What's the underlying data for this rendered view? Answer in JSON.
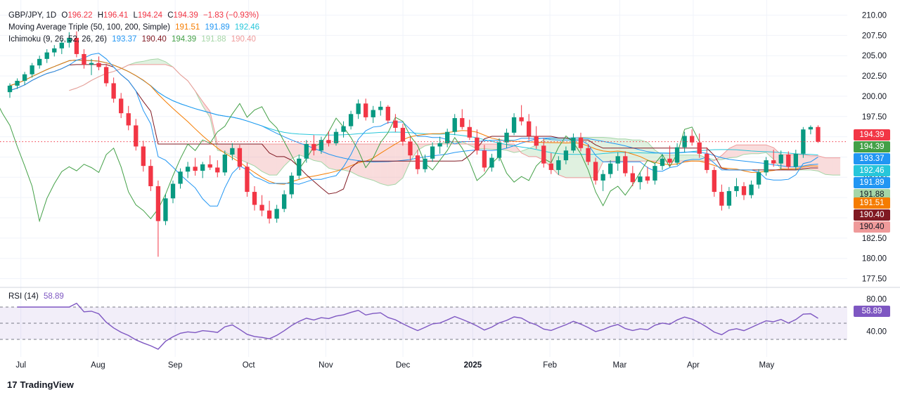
{
  "legend": {
    "symbol": "GBP/JPY, 1D",
    "open_label": "O",
    "open": "196.22",
    "high_label": "H",
    "high": "196.41",
    "low_label": "L",
    "low": "194.24",
    "close_label": "C",
    "close": "194.39",
    "change": "−1.83 (−0.93%)",
    "ma_title": "Moving Average Triple (50, 100, 200, Simple)",
    "ma_values": [
      "191.51",
      "191.89",
      "192.46"
    ],
    "ichimoku_title": "Ichimoku (9, 26, 52, 26, 26)",
    "ichimoku_values": [
      "193.37",
      "190.40",
      "194.39",
      "191.88",
      "190.40"
    ],
    "rsi_title": "RSI (14)",
    "rsi_value": "58.89"
  },
  "price_badges": [
    {
      "text": "194.39",
      "color": "#f23645"
    },
    {
      "text": "194.39",
      "color": "#43a047"
    },
    {
      "text": "193.37",
      "color": "#2196f3"
    },
    {
      "text": "192.46",
      "color": "#26c6da"
    },
    {
      "text": "191.89",
      "color": "#2196f3"
    },
    {
      "text": "191.88",
      "color": "#a5d6a7"
    },
    {
      "text": "191.51",
      "color": "#f57c00"
    },
    {
      "text": "190.40",
      "color": "#801922"
    },
    {
      "text": "190.40",
      "color": "#ef9a9a"
    }
  ],
  "rsi_badge": {
    "text": "58.89",
    "color": "#7e57c2"
  },
  "brand": "TradingView",
  "colors": {
    "up": "#089981",
    "down": "#f23645",
    "ma50": "#f57c00",
    "ma100": "#2196f3",
    "ma200": "#26c6da",
    "tenkan": "#2196f3",
    "kijun": "#801922",
    "lagging": "#43a047",
    "cloud_bull": "#a5d6a7",
    "cloud_bear": "#ef9a9a",
    "rsi": "#7e57c2"
  },
  "chart_data": {
    "type": "candlestick",
    "price_axis": {
      "ticks": [
        "210.00",
        "207.50",
        "205.00",
        "202.50",
        "200.00",
        "197.50",
        "195.00",
        "192.50",
        "190.00",
        "187.50",
        "185.00",
        "182.50",
        "180.00",
        "177.50"
      ],
      "range": [
        177.2,
        211.0
      ]
    },
    "rsi_axis": {
      "ticks": [
        "80.00",
        "40.00"
      ],
      "range": [
        10,
        90
      ],
      "bands": [
        30,
        50,
        70
      ]
    },
    "x_labels": [
      "Jul",
      "Aug",
      "Sep",
      "Oct",
      "Nov",
      "Dec",
      "2025",
      "Feb",
      "Mar",
      "Apr",
      "May"
    ],
    "last_close": 194.39,
    "ohlc": [
      [
        200.5,
        201.6,
        199.8,
        201.3
      ],
      [
        201.3,
        202.2,
        200.9,
        201.9
      ],
      [
        201.9,
        203.0,
        201.4,
        202.7
      ],
      [
        202.7,
        204.1,
        202.3,
        203.8
      ],
      [
        203.8,
        205.0,
        203.4,
        204.6
      ],
      [
        204.6,
        205.8,
        204.1,
        205.4
      ],
      [
        205.4,
        206.3,
        204.9,
        205.9
      ],
      [
        205.9,
        207.0,
        205.2,
        206.6
      ],
      [
        206.6,
        207.9,
        206.0,
        207.2
      ],
      [
        207.2,
        208.0,
        204.8,
        205.2
      ],
      [
        205.2,
        205.8,
        203.4,
        203.9
      ],
      [
        203.9,
        204.6,
        202.6,
        204.1
      ],
      [
        204.1,
        204.9,
        203.2,
        203.6
      ],
      [
        203.6,
        204.0,
        201.2,
        201.6
      ],
      [
        201.6,
        202.3,
        199.2,
        199.7
      ],
      [
        199.7,
        200.4,
        197.3,
        197.9
      ],
      [
        197.9,
        198.8,
        195.8,
        196.4
      ],
      [
        196.4,
        197.2,
        193.3,
        193.8
      ],
      [
        193.8,
        194.5,
        190.7,
        191.4
      ],
      [
        191.4,
        192.2,
        188.3,
        188.9
      ],
      [
        188.9,
        189.6,
        180.2,
        184.6
      ],
      [
        184.6,
        187.9,
        184.1,
        187.4
      ],
      [
        187.4,
        189.6,
        186.8,
        189.2
      ],
      [
        189.2,
        191.1,
        188.6,
        190.7
      ],
      [
        190.7,
        191.9,
        189.9,
        191.3
      ],
      [
        191.3,
        192.4,
        190.2,
        190.8
      ],
      [
        190.8,
        191.9,
        189.9,
        191.6
      ],
      [
        191.6,
        192.7,
        190.9,
        191.2
      ],
      [
        191.2,
        192.1,
        190.0,
        190.6
      ],
      [
        190.6,
        193.3,
        190.2,
        192.8
      ],
      [
        192.8,
        194.2,
        192.1,
        193.6
      ],
      [
        193.6,
        194.0,
        190.9,
        191.3
      ],
      [
        191.3,
        191.8,
        187.6,
        188.2
      ],
      [
        188.2,
        188.9,
        185.9,
        186.6
      ],
      [
        186.6,
        187.8,
        185.2,
        185.9
      ],
      [
        185.9,
        187.1,
        184.3,
        184.9
      ],
      [
        184.9,
        186.6,
        184.4,
        186.1
      ],
      [
        186.1,
        188.4,
        185.7,
        187.9
      ],
      [
        187.9,
        190.6,
        187.4,
        190.2
      ],
      [
        190.2,
        192.8,
        189.8,
        192.3
      ],
      [
        192.3,
        194.6,
        191.8,
        194.1
      ],
      [
        194.1,
        195.2,
        192.7,
        193.3
      ],
      [
        193.3,
        195.0,
        192.9,
        194.6
      ],
      [
        194.6,
        195.7,
        193.8,
        194.2
      ],
      [
        194.2,
        196.0,
        193.9,
        195.6
      ],
      [
        195.6,
        196.9,
        194.9,
        196.3
      ],
      [
        196.3,
        198.2,
        195.9,
        197.8
      ],
      [
        197.8,
        199.6,
        197.2,
        199.1
      ],
      [
        199.1,
        199.7,
        197.0,
        197.4
      ],
      [
        197.4,
        198.8,
        196.7,
        198.3
      ],
      [
        198.3,
        199.4,
        197.6,
        198.7
      ],
      [
        198.7,
        198.9,
        196.6,
        197.0
      ],
      [
        197.0,
        197.8,
        195.6,
        196.1
      ],
      [
        196.1,
        196.6,
        193.9,
        194.4
      ],
      [
        194.4,
        195.0,
        192.1,
        192.7
      ],
      [
        192.7,
        193.4,
        190.4,
        191.0
      ],
      [
        191.0,
        192.8,
        190.6,
        192.3
      ],
      [
        192.3,
        194.3,
        191.9,
        193.8
      ],
      [
        193.8,
        195.0,
        192.9,
        194.2
      ],
      [
        194.2,
        196.0,
        193.7,
        195.6
      ],
      [
        195.6,
        197.8,
        195.2,
        197.3
      ],
      [
        197.3,
        198.4,
        195.9,
        196.2
      ],
      [
        196.2,
        197.1,
        194.6,
        194.9
      ],
      [
        194.9,
        195.9,
        192.8,
        193.3
      ],
      [
        193.3,
        194.0,
        190.7,
        191.2
      ],
      [
        191.2,
        192.9,
        190.7,
        192.4
      ],
      [
        192.4,
        194.8,
        192.0,
        194.3
      ],
      [
        194.3,
        196.0,
        193.6,
        195.5
      ],
      [
        195.5,
        197.9,
        195.2,
        197.4
      ],
      [
        197.4,
        198.9,
        196.4,
        196.9
      ],
      [
        196.9,
        197.8,
        194.6,
        195.1
      ],
      [
        195.1,
        196.3,
        193.5,
        193.9
      ],
      [
        193.9,
        194.8,
        191.2,
        191.7
      ],
      [
        191.7,
        193.0,
        190.4,
        190.9
      ],
      [
        190.9,
        192.6,
        190.3,
        192.1
      ],
      [
        192.1,
        193.8,
        191.6,
        193.3
      ],
      [
        193.3,
        195.4,
        193.0,
        194.9
      ],
      [
        194.9,
        195.5,
        193.2,
        193.6
      ],
      [
        193.6,
        194.1,
        191.5,
        191.9
      ],
      [
        191.9,
        192.4,
        189.1,
        189.6
      ],
      [
        189.6,
        190.9,
        188.3,
        190.4
      ],
      [
        190.4,
        192.1,
        189.9,
        191.7
      ],
      [
        191.7,
        193.1,
        190.8,
        192.6
      ],
      [
        192.6,
        193.2,
        190.1,
        190.5
      ],
      [
        190.5,
        191.4,
        188.9,
        189.4
      ],
      [
        189.4,
        190.6,
        188.5,
        190.1
      ],
      [
        190.1,
        191.3,
        189.2,
        189.6
      ],
      [
        189.6,
        191.8,
        189.1,
        191.4
      ],
      [
        191.4,
        192.9,
        190.9,
        192.3
      ],
      [
        192.3,
        193.9,
        191.4,
        191.8
      ],
      [
        191.8,
        194.2,
        191.5,
        193.7
      ],
      [
        193.7,
        195.6,
        193.1,
        195.1
      ],
      [
        195.1,
        195.9,
        193.9,
        194.3
      ],
      [
        194.3,
        195.4,
        192.4,
        192.9
      ],
      [
        192.9,
        193.7,
        190.5,
        190.9
      ],
      [
        190.9,
        191.3,
        187.6,
        188.2
      ],
      [
        188.2,
        189.1,
        185.9,
        186.5
      ],
      [
        186.5,
        188.8,
        186.1,
        188.3
      ],
      [
        188.3,
        189.9,
        187.6,
        188.9
      ],
      [
        188.9,
        189.4,
        187.2,
        187.8
      ],
      [
        187.8,
        189.6,
        187.4,
        189.1
      ],
      [
        189.1,
        191.0,
        188.6,
        190.6
      ],
      [
        190.6,
        192.5,
        190.2,
        192.1
      ],
      [
        192.1,
        193.4,
        191.3,
        191.7
      ],
      [
        191.7,
        193.3,
        191.0,
        192.8
      ],
      [
        192.8,
        193.2,
        190.9,
        191.3
      ],
      [
        191.3,
        193.4,
        190.9,
        192.9
      ],
      [
        192.9,
        196.2,
        192.4,
        195.9
      ],
      [
        195.9,
        196.4,
        195.3,
        196.2
      ],
      [
        196.2,
        196.41,
        194.24,
        194.39
      ]
    ]
  }
}
